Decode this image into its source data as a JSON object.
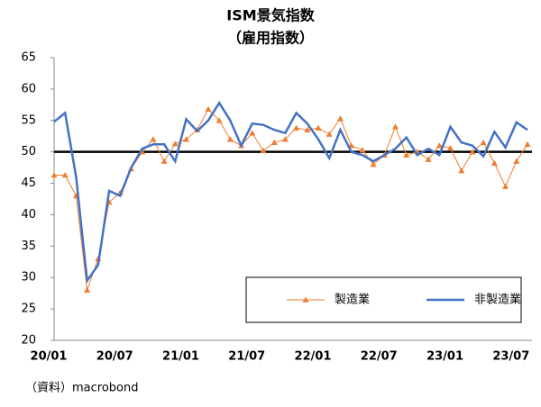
{
  "chart_data": {
    "type": "line",
    "title": "ISM景気指数",
    "subtitle": "（雇用指数）",
    "source": "（資料）macrobond",
    "categories": [
      "20/01",
      null,
      null,
      null,
      null,
      null,
      "20/07",
      null,
      null,
      null,
      null,
      null,
      "21/01",
      null,
      null,
      null,
      null,
      null,
      "21/07",
      null,
      null,
      null,
      null,
      null,
      "22/01",
      null,
      null,
      null,
      null,
      null,
      "22/07",
      null,
      null,
      null,
      null,
      null,
      "23/01",
      null,
      null,
      null,
      null,
      null,
      "23/07",
      null
    ],
    "series": [
      {
        "name": "製造業",
        "color": "#ed7d31",
        "marker": "triangle",
        "values": [
          46.3,
          46.3,
          43,
          28,
          33,
          42,
          43.5,
          47.3,
          50,
          52,
          48.5,
          51.3,
          52,
          53.5,
          56.8,
          55,
          52,
          51,
          53,
          50.2,
          51.5,
          52,
          53.8,
          53.5,
          53.8,
          52.8,
          55.3,
          51,
          50.3,
          48,
          49.5,
          54,
          49.5,
          50,
          48.8,
          51,
          50.6,
          47,
          50,
          51.5,
          48.2,
          44.5,
          48.5,
          51.2
        ]
      },
      {
        "name": "非製造業",
        "color": "#4472c4",
        "values": [
          54.8,
          56.2,
          46,
          29.5,
          32,
          43.8,
          43,
          47.5,
          50.5,
          51.2,
          51.2,
          48.5,
          55.2,
          53.3,
          55,
          57.8,
          55,
          51,
          54.5,
          54.3,
          53.5,
          53,
          56.2,
          54.5,
          52,
          49,
          53.5,
          50,
          49.5,
          48.5,
          49.5,
          50.5,
          52.3,
          49.5,
          50.5,
          49.5,
          54,
          51.5,
          51,
          49.3,
          53.2,
          50.7,
          54.7,
          53.5
        ]
      }
    ],
    "reference_line": 50,
    "ylim": [
      20,
      65
    ],
    "yticks": [
      20,
      25,
      30,
      35,
      40,
      45,
      50,
      55,
      60,
      65
    ],
    "legend": "lower right"
  }
}
